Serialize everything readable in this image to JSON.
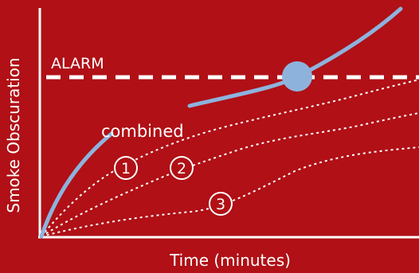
{
  "diagram": {
    "alarm_label": "ALARM",
    "combined_label": "combined",
    "x_axis_label": "Time (minutes)",
    "y_axis_label": "Smoke Obscuration",
    "source_markers": [
      "1",
      "2",
      "3"
    ],
    "colors": {
      "background": "#b01016",
      "axis": "#ffffff",
      "combined_curve": "#8db3dd",
      "alarm_line": "#ffffff"
    }
  }
}
